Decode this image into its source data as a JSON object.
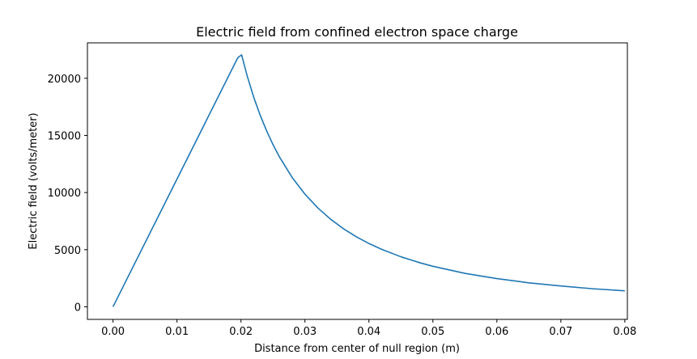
{
  "chart_data": {
    "type": "line",
    "title": "Electric field from confined electron space charge",
    "xlabel": "Distance from center of null region (m)",
    "ylabel": "Electric field (volts/meter)",
    "xlim": [
      -0.004,
      0.0804
    ],
    "ylim": [
      -1100,
      23100
    ],
    "x_ticks": [
      0.0,
      0.01,
      0.02,
      0.03,
      0.04,
      0.05,
      0.06,
      0.07,
      0.08
    ],
    "x_tick_labels": [
      "0.00",
      "0.01",
      "0.02",
      "0.03",
      "0.04",
      "0.05",
      "0.06",
      "0.07",
      "0.08"
    ],
    "y_ticks": [
      0,
      5000,
      10000,
      15000,
      20000
    ],
    "y_tick_labels": [
      "0",
      "5000",
      "10000",
      "15000",
      "20000"
    ],
    "grid": false,
    "line_color": "#1f77b4",
    "series": [
      {
        "x": [
          0.0,
          0.0195,
          0.0201,
          0.021,
          0.022,
          0.023,
          0.024,
          0.025,
          0.026,
          0.028,
          0.03,
          0.032,
          0.034,
          0.036,
          0.038,
          0.04,
          0.042,
          0.045,
          0.048,
          0.05,
          0.055,
          0.06,
          0.065,
          0.07,
          0.075,
          0.08
        ],
        "y": [
          0,
          21800,
          22050,
          20150,
          18330,
          16770,
          15410,
          14200,
          13130,
          11320,
          9860,
          8660,
          7670,
          6840,
          6140,
          5540,
          5030,
          4380,
          3850,
          3550,
          2930,
          2470,
          2100,
          1820,
          1580,
          1400
        ]
      }
    ]
  }
}
